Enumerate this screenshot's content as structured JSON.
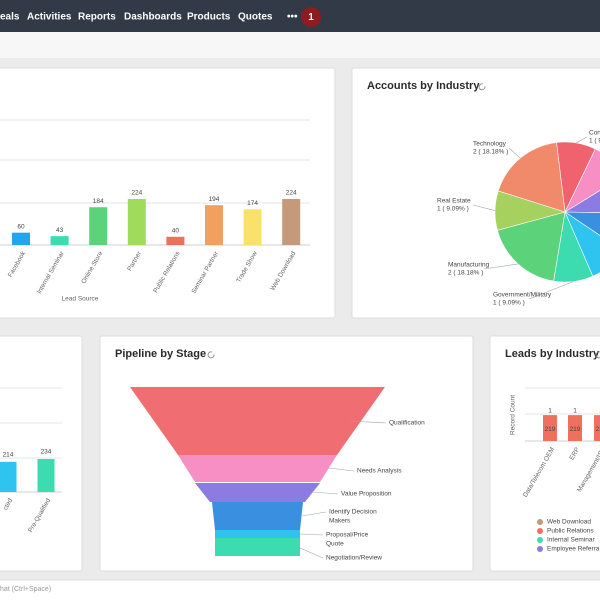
{
  "nav": {
    "items": [
      "eals",
      "Activities",
      "Reports",
      "Dashboards",
      "Products",
      "Quotes",
      "•••"
    ],
    "badge": "1"
  },
  "lead_source_chart": {
    "x_axis_title": "Lead Source",
    "categories": [
      "Facebook",
      "Internal Seminar",
      "Online Store",
      "Partner",
      "Public Relations",
      "Seminar Partner",
      "Trade Show",
      "Web Download"
    ],
    "values": [
      60,
      43,
      184,
      224,
      40,
      194,
      174,
      224
    ],
    "colors": [
      "#21a6ee",
      "#3ddbb0",
      "#5cd37a",
      "#9fdc5b",
      "#f07060",
      "#f1a05e",
      "#f8e26a",
      "#c49a7a"
    ]
  },
  "accounts_by_industry": {
    "title": "Accounts by Industry",
    "slices": [
      {
        "name": "Con",
        "value": 9.09,
        "value_label": "1 ( 9.",
        "color": "#f0636e"
      },
      {
        "name": null,
        "value": 9.09,
        "value_label": null,
        "color": "#f78fc4"
      },
      {
        "name": null,
        "value": 9.09,
        "value_label": null,
        "color": "#8c7be0"
      },
      {
        "name": null,
        "value": 9.09,
        "value_label": null,
        "color": "#3a8fe0"
      },
      {
        "name": null,
        "value": 9.09,
        "value_label": null,
        "color": "#2ec4ef"
      },
      {
        "name": "Government/Military",
        "value": 9.09,
        "value_label": "1 ( 9.09% )",
        "color": "#3ddbb0"
      },
      {
        "name": "Manufacturing",
        "value": 18.18,
        "value_label": "2 ( 18.18% )",
        "color": "#5cd37a"
      },
      {
        "name": "Real Estate",
        "value": 9.09,
        "value_label": "1 ( 9.09% )",
        "color": "#a6d15e"
      },
      {
        "name": "Technology",
        "value": 18.18,
        "value_label": "2 ( 18.18% )",
        "color": "#f08a6a"
      }
    ]
  },
  "status_chart": {
    "categories": [
      "cted",
      "Pre-Qualified"
    ],
    "values": [
      214,
      234
    ],
    "colors": [
      "#2ec4ef",
      "#3ddbb0"
    ]
  },
  "pipeline_by_stage": {
    "title": "Pipeline by Stage",
    "stages": [
      {
        "label_lines": [
          "Qualification"
        ]
      },
      {
        "label_lines": [
          "Needs Analysis"
        ]
      },
      {
        "label_lines": [
          "Value Proposition"
        ]
      },
      {
        "label_lines": [
          "Identify Decision",
          "Makers"
        ]
      },
      {
        "label_lines": [
          "Proposal/Price",
          "Quote"
        ]
      },
      {
        "label_lines": [
          "Negotiation/Review"
        ]
      }
    ]
  },
  "leads_by_industry": {
    "title": "Leads by Industry",
    "y_axis_title": "Record Count",
    "categories": [
      "Data/Telecom OEM",
      "ERP",
      "Management/ISV"
    ],
    "series": [
      {
        "name": "Web Download",
        "color": "#c49a7a",
        "values": [
          1,
          1,
          1
        ]
      },
      {
        "name": "Public Relations",
        "color": "#f07060",
        "values": [
          219,
          219,
          219
        ]
      },
      {
        "name": "Internal Seminar",
        "color": "#3ddbb0",
        "values": [
          null,
          null,
          null
        ]
      },
      {
        "name": "Employee Referra",
        "color": "#8c7be0",
        "values": [
          null,
          null,
          null
        ]
      }
    ]
  },
  "chat": {
    "placeholder": "hat (Ctrl+Space)"
  }
}
